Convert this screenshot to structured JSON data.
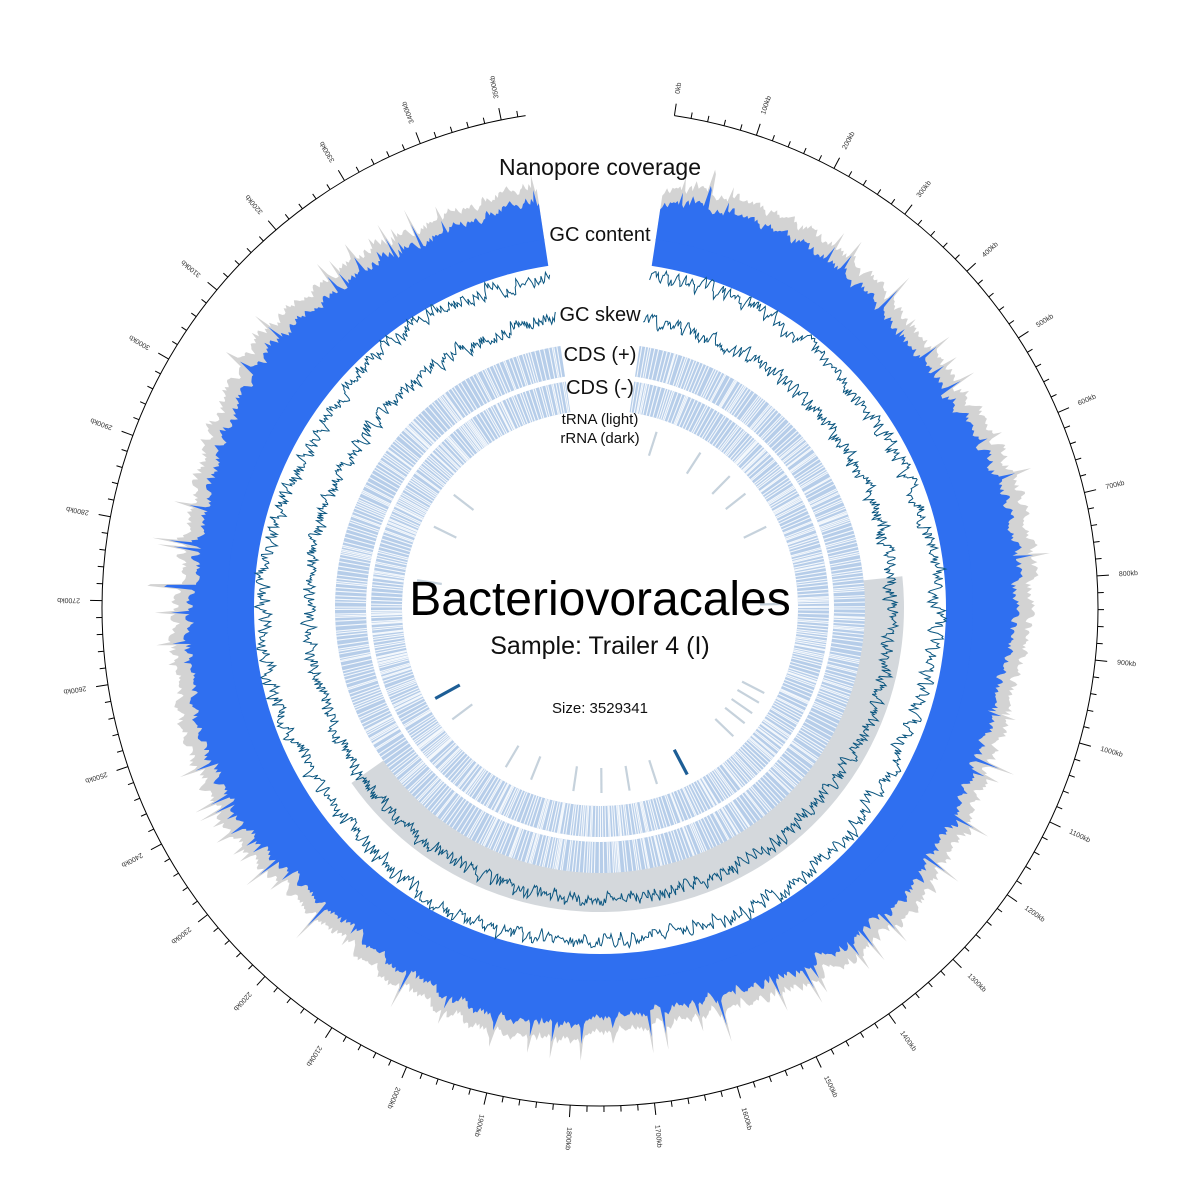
{
  "organism": "Bacteriovoracales",
  "sample_label": "Sample: Trailer 4 (I)",
  "size_label": "Size: 3529341",
  "genome_size_bp": 3529341,
  "tracks": {
    "coverage": "Nanopore coverage",
    "gc_content": "GC content",
    "gc_skew": "GC skew",
    "cds_plus": "CDS (+)",
    "cds_minus": "CDS (-)",
    "trna": "tRNA (light)",
    "rrna": "rRNA (dark)"
  },
  "tick_labels": [
    "0kb",
    "100kb",
    "200kb",
    "300kb",
    "400kb",
    "500kb",
    "600kb",
    "700kb",
    "800kb",
    "900kb",
    "1000kb",
    "1100kb",
    "1200kb",
    "1300kb",
    "1400kb",
    "1500kb",
    "1600kb",
    "1700kb",
    "1800kb",
    "1900kb",
    "2000kb",
    "2100kb",
    "2200kb",
    "2300kb",
    "2400kb",
    "2500kb",
    "2600kb",
    "2700kb",
    "2800kb",
    "2900kb",
    "3000kb",
    "3100kb",
    "3200kb",
    "3300kb",
    "3400kb",
    "3500kb"
  ],
  "colors": {
    "coverage": "#2f6ff0",
    "coverage_background": "#d3d3d3",
    "gc_line": "#0b5680",
    "cds": "#b6cde9",
    "trna": "#c6d2dc",
    "rrna": "#1d5e96",
    "skew_shadow": "#cfd4d8",
    "axis": "#000000"
  },
  "features": {
    "trna_kb": [
      95,
      250,
      370,
      445,
      570,
      825,
      1120,
      1155,
      1195,
      1235,
      1290,
      1580,
      1670,
      1760,
      1850,
      1990,
      2080,
      2310,
      2780,
      2960,
      3080
    ],
    "rrna_kb": [
      1480,
      2395
    ]
  }
}
